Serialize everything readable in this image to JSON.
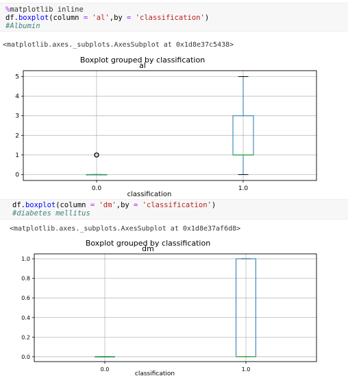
{
  "cell1": {
    "magic_prefix": "%",
    "magic_rest": "matplotlib inline",
    "line2": {
      "obj": "df.",
      "method": "boxplot",
      "open": "(column ",
      "eq1": "=",
      "val1": " 'al'",
      "sep": ",by ",
      "eq2": "=",
      "val2": " 'classification'",
      "close": ")"
    },
    "comment": "#Albumin",
    "output": "<matplotlib.axes._subplots.AxesSubplot at 0x1d8e37c5438>"
  },
  "cell2": {
    "line1": {
      "obj": "df.",
      "method": "boxplot",
      "open": "(column ",
      "eq1": "=",
      "val1": " 'dm'",
      "sep": ",by ",
      "eq2": "=",
      "val2": " 'classification'",
      "close": ")"
    },
    "comment": "#diabetes mellitus",
    "output": "<matplotlib.axes._subplots.AxesSubplot at 0x1d8e37af6d8>"
  },
  "chart_data": [
    {
      "type": "boxplot",
      "title": "Boxplot grouped by classification",
      "subtitle": "al",
      "xlabel": "classification",
      "categories": [
        "0.0",
        "1.0"
      ],
      "ylim": [
        -0.3,
        5.3
      ],
      "yticks": [
        "0",
        "1",
        "2",
        "3",
        "4",
        "5"
      ],
      "boxes": [
        {
          "category": "0.0",
          "min": 0,
          "q1": 0,
          "median": 0,
          "q3": 0,
          "max": 0,
          "outliers": [
            1
          ]
        },
        {
          "category": "1.0",
          "min": 0,
          "q1": 1,
          "median": 1,
          "q3": 3,
          "max": 5,
          "outliers": []
        }
      ],
      "grid": true,
      "colors": {
        "box": "#1f77b4",
        "median": "#2ca02c",
        "grid": "#b0b0b0"
      }
    },
    {
      "type": "boxplot",
      "title": "Boxplot grouped by classification",
      "subtitle": "dm",
      "xlabel": "classification",
      "categories": [
        "0.0",
        "1.0"
      ],
      "ylim": [
        -0.05,
        1.05
      ],
      "yticks": [
        "0.0",
        "0.2",
        "0.4",
        "0.6",
        "0.8",
        "1.0"
      ],
      "boxes": [
        {
          "category": "0.0",
          "min": 0,
          "q1": 0,
          "median": 0,
          "q3": 0,
          "max": 0,
          "outliers": []
        },
        {
          "category": "1.0",
          "min": 0,
          "q1": 0,
          "median": 0,
          "q3": 1,
          "max": 1,
          "outliers": []
        }
      ],
      "grid": true,
      "colors": {
        "box": "#1f77b4",
        "median": "#2ca02c",
        "grid": "#b0b0b0"
      }
    }
  ]
}
